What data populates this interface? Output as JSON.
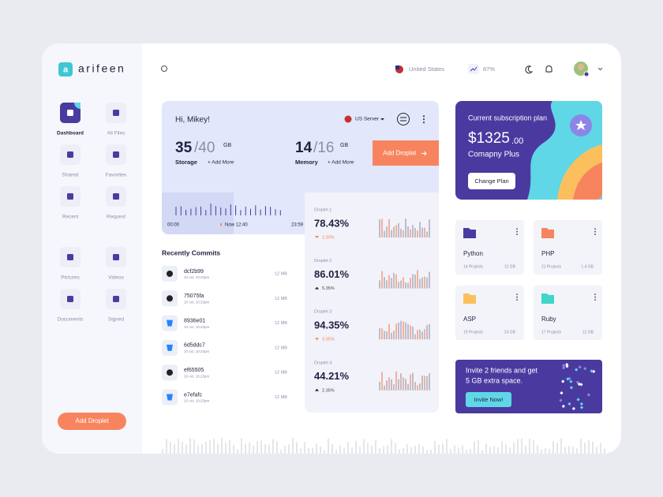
{
  "brand": "arifeen",
  "sidebar": {
    "items": [
      "Dashboard",
      "All Files",
      "Shared",
      "Favorites",
      "Recent",
      "Request",
      "Pictures",
      "Videos",
      "Documents",
      "Signed"
    ],
    "button": "Add Droplet"
  },
  "topbar": {
    "country": "United States",
    "stat": "87%"
  },
  "welcome": {
    "greeting": "Hi, Mikey!",
    "server": "US Server",
    "storage": {
      "used": "35",
      "total": "/40",
      "unit": "GB",
      "label": "Storage",
      "more": "+ Add More"
    },
    "memory": {
      "used": "14",
      "total": "/16",
      "unit": "GB",
      "label": "Memory",
      "more": "+ Add More"
    },
    "button": "Add Droplet",
    "timeline": {
      "start": "00:00",
      "now": "Now 12:40",
      "end": "23:59"
    }
  },
  "commits": {
    "title": "Recently Commits",
    "items": [
      {
        "hash": "dcf2b99",
        "date": "10 oct, 10:23pm",
        "size": "12 MB",
        "icon": "github"
      },
      {
        "hash": "75075fa",
        "date": "10 oct, 10:23pm",
        "size": "12 MB",
        "icon": "github"
      },
      {
        "hash": "8936e01",
        "date": "10 oct, 10:23pm",
        "size": "12 MB",
        "icon": "bitbucket"
      },
      {
        "hash": "6d5ddc7",
        "date": "10 oct, 10:23pm",
        "size": "12 MB",
        "icon": "bitbucket"
      },
      {
        "hash": "ef65505",
        "date": "10 oct, 10:23pm",
        "size": "12 MB",
        "icon": "github"
      },
      {
        "hash": "e7efafc",
        "date": "10 oct, 10:23pm",
        "size": "12 MB",
        "icon": "bitbucket"
      }
    ]
  },
  "droplets": [
    {
      "label": "Droplet 1",
      "value": "78.43%",
      "change": "2.30%",
      "direction": "down"
    },
    {
      "label": "Droplet 2",
      "value": "86.01%",
      "change": "5.35%",
      "direction": "up"
    },
    {
      "label": "Droplet 3",
      "value": "94.35%",
      "change": "3.35%",
      "direction": "down"
    },
    {
      "label": "Droplet 4",
      "value": "44.21%",
      "change": "2.35%",
      "direction": "up"
    }
  ],
  "subscription": {
    "title": "Current subscription plan",
    "price": "$1325",
    "cents": ".00",
    "plan": "Comapny Plus",
    "button": "Change Plan"
  },
  "folders": [
    {
      "name": "Python",
      "projects": "14 Projects",
      "size": "12 GB",
      "color": "#4a3ba0"
    },
    {
      "name": "PHP",
      "projects": "21 Projects",
      "size": "1.4 GB",
      "color": "#f7845e"
    },
    {
      "name": "ASP",
      "projects": "19 Projects",
      "size": "24 GB",
      "color": "#fbbf5e"
    },
    {
      "name": "Ruby",
      "projects": "17 Projects",
      "size": "12 GB",
      "color": "#3fd6c6"
    }
  ],
  "invite": {
    "line1": "Invite 2 friends and get",
    "line2": "5 GB extra space.",
    "button": "Invite Now!"
  }
}
